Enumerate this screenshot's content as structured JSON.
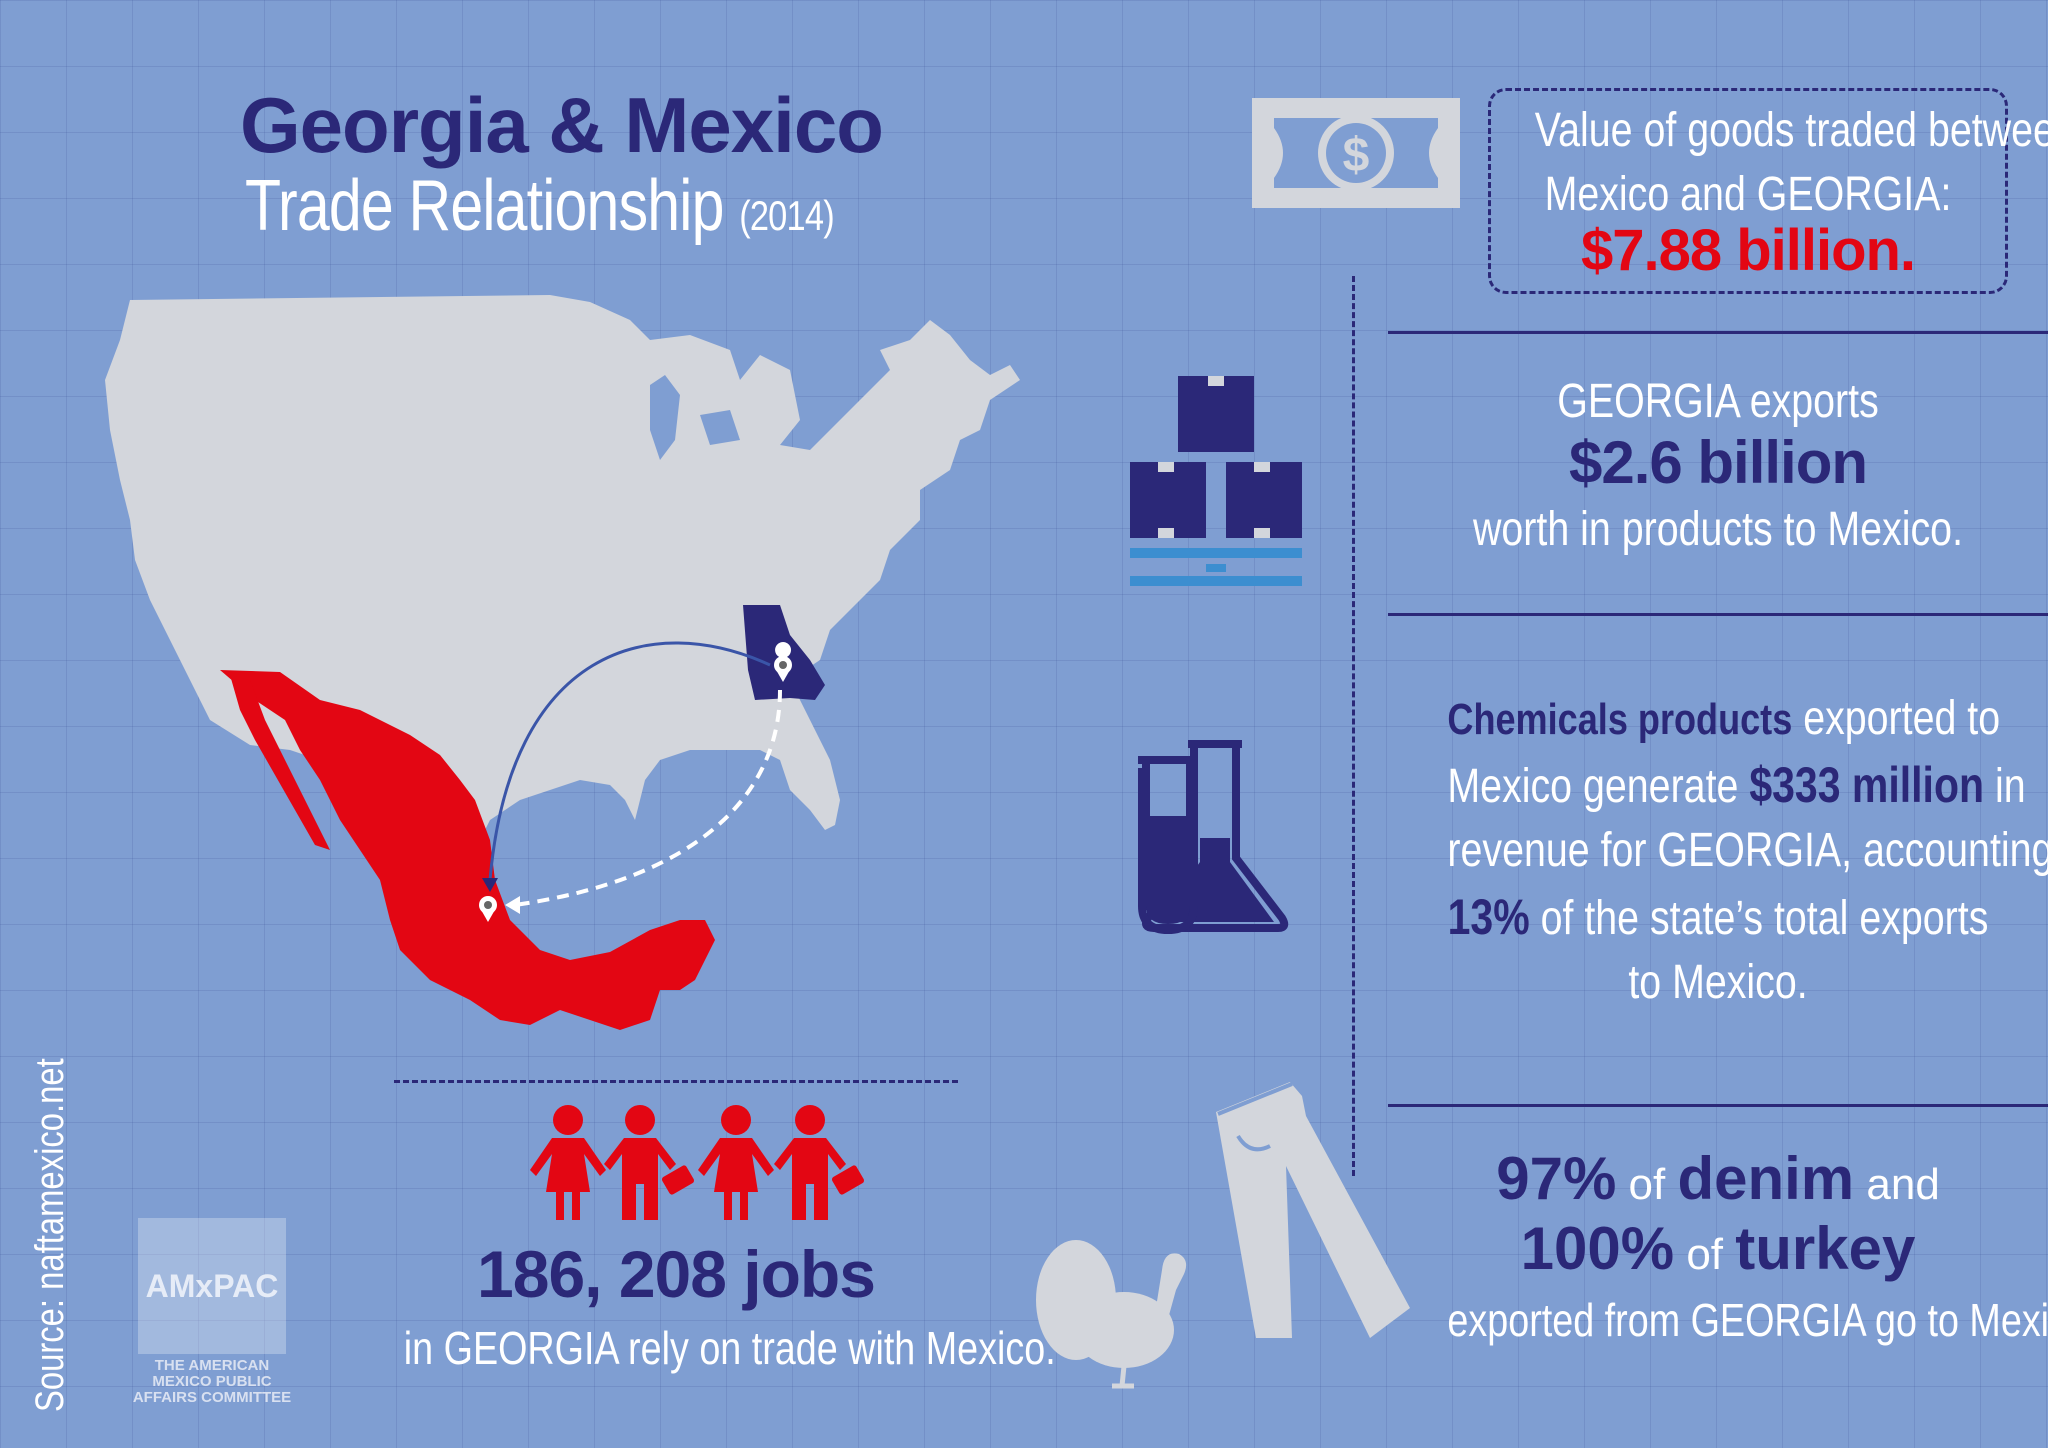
{
  "header": {
    "title": "Georgia & Mexico",
    "subtitle": "Trade Relationship",
    "year": "(2014)"
  },
  "source": "Source: naftamexico.net",
  "logo": {
    "name": "AMxPAC",
    "caption": "THE AMERICAN MEXICO PUBLIC AFFAIRS COMMITTEE"
  },
  "trade_total": {
    "line1": "Value of goods traded between",
    "line2": "Mexico and GEORGIA:",
    "value": "$7.88 billion."
  },
  "exports": {
    "line1": "GEORGIA exports",
    "value": "$2.6 billion",
    "line3": "worth in products to Mexico."
  },
  "chemicals": {
    "bold1": "Chemicals products",
    "text1": " exported to",
    "text2": "Mexico generate ",
    "bold2": "$333 million",
    "text3": " in",
    "text4": "revenue for GEORGIA, accounting for",
    "bold3": "13%",
    "text5": " of the state’s total exports",
    "text6": "to Mexico."
  },
  "agriculture": {
    "pct1": "97%",
    "of1": " of ",
    "item1": "denim",
    "and": " and",
    "pct2": "100%",
    "of2": " of ",
    "item2": "turkey",
    "line3": "exported from GEORGIA go to Mexico."
  },
  "jobs": {
    "value": "186, 208 jobs",
    "text": "in GEORGIA rely on trade with Mexico."
  },
  "colors": {
    "background": "#7f9ed2",
    "navy": "#2b2878",
    "red": "#e30613",
    "light_gray": "#d3d6dc"
  },
  "icons": [
    "dollar-bill-icon",
    "boxes-pallet-icon",
    "test-tubes-icon",
    "jeans-icon",
    "turkey-icon",
    "workers-icon",
    "map-pin-icon"
  ]
}
